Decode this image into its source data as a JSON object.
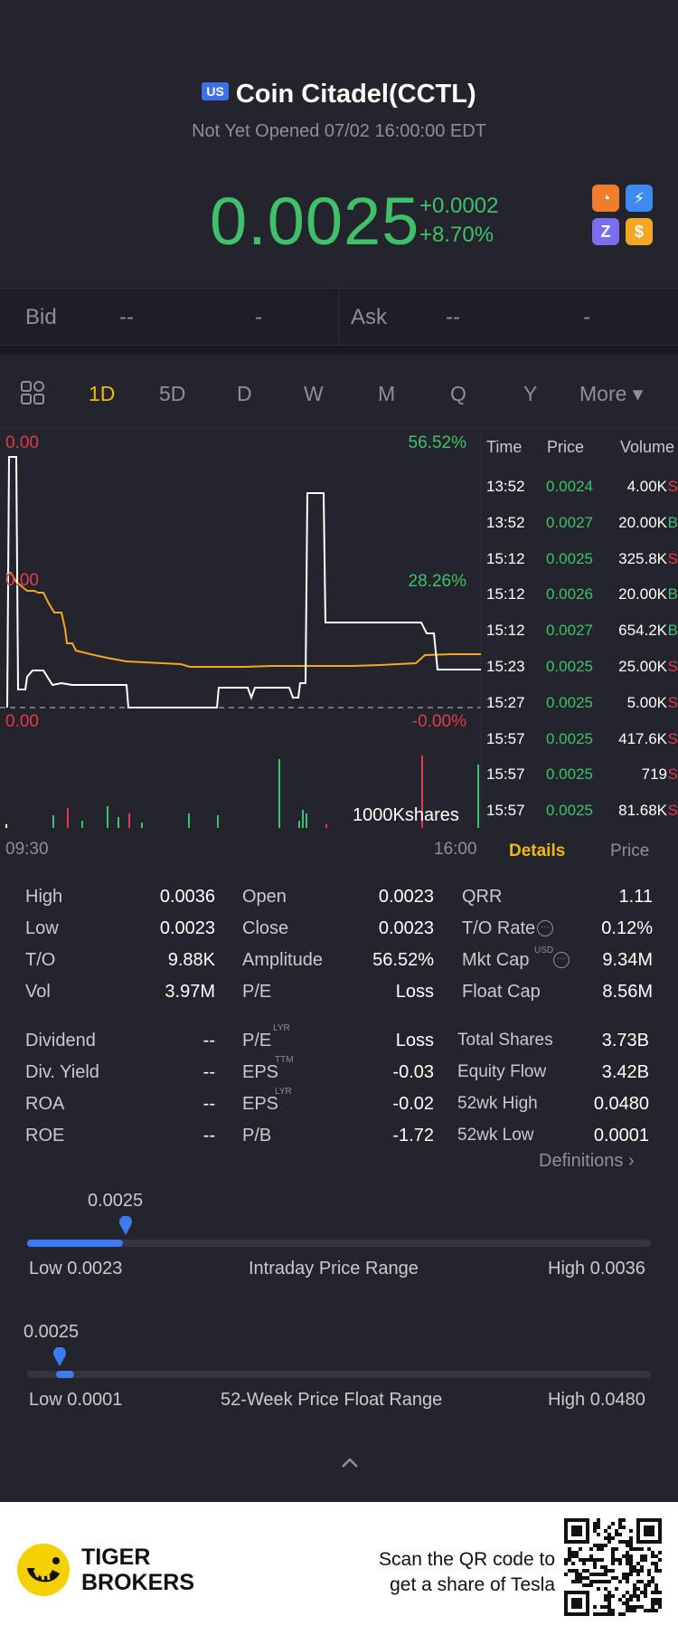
{
  "header": {
    "market_badge": "US",
    "title": "Coin Citadel(CCTL)",
    "status": "Not Yet Opened 07/02 16:00:00 EDT",
    "price": "0.0025",
    "change": "+0.0002",
    "change_pct": "+8.70%",
    "icons": [
      "chart-badge-icon",
      "lightning-badge-icon",
      "z-badge-icon",
      "dollar-badge-icon"
    ]
  },
  "quote": {
    "bid_label": "Bid",
    "bid_price": "--",
    "bid_size": "-",
    "ask_label": "Ask",
    "ask_price": "--",
    "ask_size": "-"
  },
  "tabs": [
    "1D",
    "5D",
    "D",
    "W",
    "M",
    "Q",
    "Y",
    "More ▾"
  ],
  "active_tab": "1D",
  "chart": {
    "left_top": "0.00",
    "left_mid": "0.00",
    "left_bottom": "0.00",
    "right_top": "56.52%",
    "right_mid": "28.26%",
    "right_bottom": "-0.00%",
    "volume_label": "1000Kshares",
    "time_start": "09:30",
    "time_end": "16:00",
    "colors": {
      "price_line": "#ffffff",
      "avg_line": "#f5a623",
      "up": "#3ec16a",
      "down": "#e23b4a"
    }
  },
  "trades": {
    "headers": [
      "Time",
      "Price",
      "Volume"
    ],
    "rows": [
      {
        "time": "13:52",
        "price": "0.0024",
        "volume": "4.00K",
        "side": "S"
      },
      {
        "time": "13:52",
        "price": "0.0027",
        "volume": "20.00K",
        "side": "B"
      },
      {
        "time": "15:12",
        "price": "0.0025",
        "volume": "325.8K",
        "side": "S"
      },
      {
        "time": "15:12",
        "price": "0.0026",
        "volume": "20.00K",
        "side": "B"
      },
      {
        "time": "15:12",
        "price": "0.0027",
        "volume": "654.2K",
        "side": "B"
      },
      {
        "time": "15:23",
        "price": "0.0025",
        "volume": "25.00K",
        "side": "S"
      },
      {
        "time": "15:27",
        "price": "0.0025",
        "volume": "5.00K",
        "side": "S"
      },
      {
        "time": "15:57",
        "price": "0.0025",
        "volume": "417.6K",
        "side": "S"
      },
      {
        "time": "15:57",
        "price": "0.0025",
        "volume": "719",
        "side": "S"
      },
      {
        "time": "15:57",
        "price": "0.0025",
        "volume": "81.68K",
        "side": "S"
      }
    ],
    "tab_details": "Details",
    "tab_price": "Price"
  },
  "stats": {
    "col1": [
      [
        "High",
        "0.0036"
      ],
      [
        "Low",
        "0.0023"
      ],
      [
        "T/O",
        "9.88K"
      ],
      [
        "Vol",
        "3.97M"
      ]
    ],
    "col2": [
      [
        "Open",
        "0.0023"
      ],
      [
        "Close",
        "0.0023"
      ],
      [
        "Amplitude",
        "56.52%"
      ],
      [
        "P/E",
        "Loss"
      ]
    ],
    "col3": [
      [
        "QRR",
        "1.11"
      ],
      [
        "T/O Rate",
        "0.12%"
      ],
      [
        "Mkt Cap",
        "9.34M"
      ],
      [
        "Float Cap",
        "8.56M"
      ]
    ],
    "col1b": [
      [
        "Dividend",
        "--"
      ],
      [
        "Div. Yield",
        "--"
      ],
      [
        "ROA",
        "--"
      ],
      [
        "ROE",
        "--"
      ]
    ],
    "col2b": [
      [
        "P/E",
        "Loss",
        "LYR"
      ],
      [
        "EPS",
        "-0.03",
        "TTM"
      ],
      [
        "EPS",
        "-0.02",
        "LYR"
      ],
      [
        "P/B",
        "-1.72",
        ""
      ]
    ],
    "col3b": [
      [
        "Total Shares",
        "3.73B"
      ],
      [
        "Equity Flow",
        "3.42B"
      ],
      [
        "52wk High",
        "0.0480"
      ],
      [
        "52wk Low",
        "0.0001"
      ]
    ],
    "mktcap_sup": "USD",
    "definitions": "Definitions"
  },
  "intraday": {
    "marker": "0.0025",
    "low": "Low 0.0023",
    "label": "Intraday Price Range",
    "high": "High 0.0036",
    "position": 0.154
  },
  "week52": {
    "marker": "0.0025",
    "low": "Low 0.0001",
    "label": "52-Week Price Float Range",
    "high": "High 0.0480",
    "position": 0.05
  },
  "footer": {
    "brand_line1": "TIGER",
    "brand_line2": "BROKERS",
    "cta_line1": "Scan the QR code to",
    "cta_line2": "get a share of Tesla"
  }
}
